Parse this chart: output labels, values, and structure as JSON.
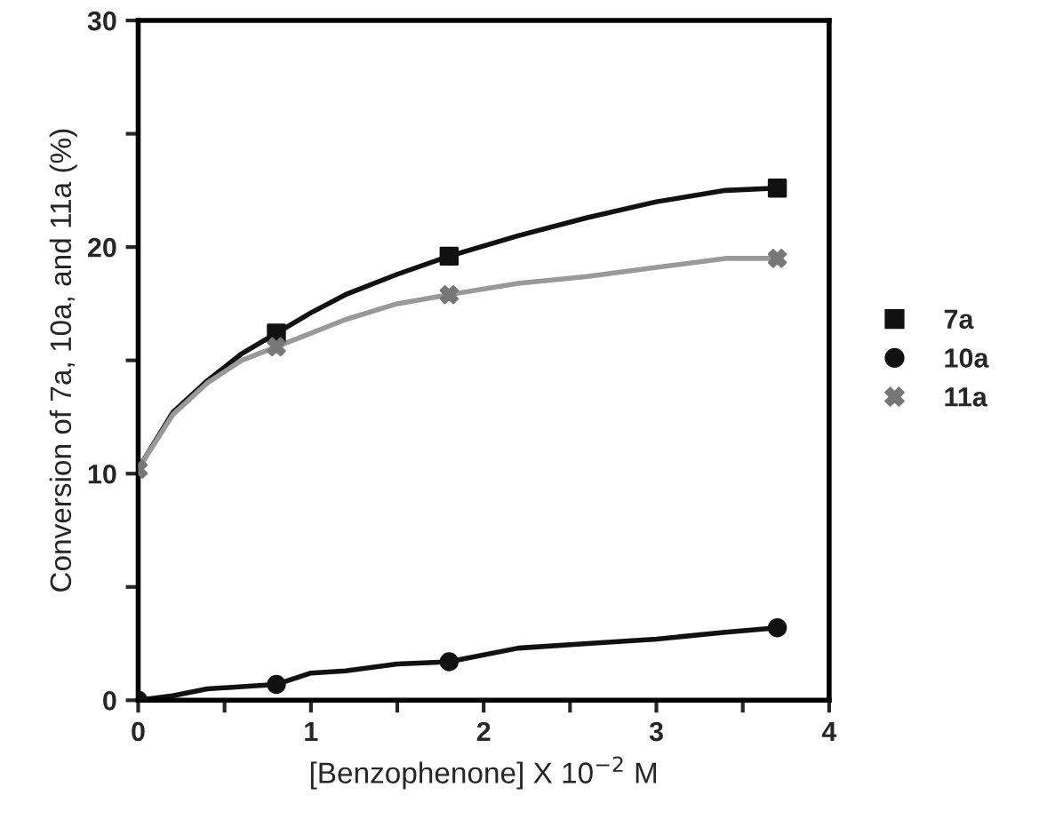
{
  "chart_data": {
    "type": "line",
    "xlabel": "[Benzophenone] X 10$^{−2}$ M",
    "ylabel": "Conversion of 7a, 10a, and 11a (%)",
    "xlim": [
      0,
      4
    ],
    "ylim": [
      0,
      30
    ],
    "xticks": [
      0,
      {
        "value": 0.5,
        "label": null
      },
      1,
      {
        "value": 1.5,
        "label": null
      },
      2,
      {
        "value": 2.5,
        "label": null
      },
      3,
      {
        "value": 3.5,
        "label": null
      },
      4
    ],
    "yticks": [
      0,
      {
        "value": 5,
        "label": null
      },
      10,
      {
        "value": 15,
        "label": null
      },
      20,
      {
        "value": 25,
        "label": null
      },
      30
    ],
    "grid": false,
    "legend": "right",
    "series": [
      {
        "color": "#111111",
        "x": [
          0,
          0.2,
          0.4,
          0.6,
          0.8,
          1.0,
          1.2,
          1.5,
          1.8,
          2.2,
          2.6,
          3.0,
          3.4,
          3.7
        ],
        "values": [
          10.2,
          12.7,
          14.1,
          15.3,
          16.2,
          17.1,
          17.9,
          18.8,
          19.6,
          20.5,
          21.3,
          22.0,
          22.5,
          22.6
        ]
      },
      {
        "color": "#999999",
        "x": [
          0,
          0.2,
          0.4,
          0.6,
          0.8,
          1.0,
          1.2,
          1.5,
          1.8,
          2.2,
          2.6,
          3.0,
          3.4,
          3.7
        ],
        "values": [
          10.2,
          12.6,
          14.0,
          15.0,
          15.6,
          16.2,
          16.8,
          17.5,
          17.9,
          18.4,
          18.7,
          19.1,
          19.5,
          19.5
        ]
      },
      {
        "color": "#111111",
        "x": [
          0,
          0.2,
          0.4,
          0.6,
          0.8,
          1.0,
          1.2,
          1.5,
          1.8,
          2.2,
          2.6,
          3.0,
          3.4,
          3.7
        ],
        "values": [
          0,
          0.2,
          0.5,
          0.6,
          0.7,
          1.2,
          1.3,
          1.6,
          1.7,
          2.3,
          2.5,
          2.7,
          3.0,
          3.2
        ]
      },
      {
        "type": "scatter",
        "name": "7a",
        "color": "#111111",
        "marker": "square",
        "x": [
          0.8,
          1.8,
          3.7
        ],
        "values": [
          16.2,
          19.6,
          22.6
        ]
      },
      {
        "type": "scatter",
        "name": "10a",
        "color": "#111111",
        "marker": "circle",
        "x": [
          0,
          0.8,
          1.8,
          3.7
        ],
        "values": [
          0,
          0.7,
          1.7,
          3.2
        ]
      },
      {
        "type": "scatter",
        "name": "11a",
        "color": "#777777",
        "marker": "cross",
        "x": [
          0,
          0.8,
          1.8,
          3.7
        ],
        "values": [
          10.2,
          15.6,
          17.9,
          19.5
        ]
      }
    ]
  }
}
